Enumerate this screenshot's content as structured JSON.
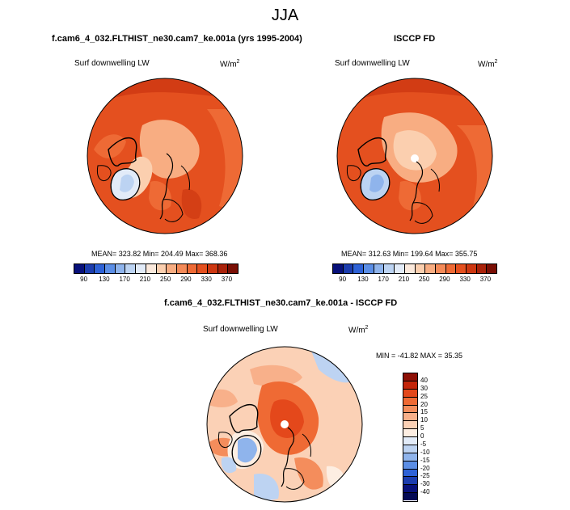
{
  "season": "JJA",
  "panel_model": {
    "title": "f.cam6_4_032.FLTHIST_ne30.cam7_ke.001a (yrs 1995-2004)",
    "variable": "Surf downwelling LW",
    "units_base": "W/m",
    "units_exp": "2",
    "stats": "MEAN= 323.82  Min= 204.49  Max= 368.36"
  },
  "panel_obs": {
    "title": "ISCCP FD",
    "variable": "Surf downwelling LW",
    "units_base": "W/m",
    "units_exp": "2",
    "stats": "MEAN= 312.63  Min= 199.64  Max= 355.75"
  },
  "panel_diff": {
    "title": "f.cam6_4_032.FLTHIST_ne30.cam7_ke.001a - ISCCP FD",
    "variable": "Surf downwelling LW",
    "units_base": "W/m",
    "units_exp": "2",
    "stats": "MIN = -41.82 MAX =  35.35"
  },
  "colorbar_abs": {
    "tick_labels": [
      "90",
      "130",
      "170",
      "210",
      "250",
      "290",
      "330",
      "370"
    ],
    "colors": [
      "#08117a",
      "#1c3dae",
      "#2e62d6",
      "#5b8ee6",
      "#8fb4ec",
      "#bcd3f2",
      "#e2ebf8",
      "#fbe9dc",
      "#fbcfaf",
      "#f8ad82",
      "#f48a58",
      "#ee6a35",
      "#e4501f",
      "#cd3711",
      "#a9220a",
      "#7a0f05"
    ]
  },
  "colorbar_diff": {
    "tick_labels": [
      "40",
      "30",
      "25",
      "20",
      "15",
      "10",
      "5",
      "0",
      "-5",
      "-10",
      "-15",
      "-20",
      "-25",
      "-30",
      "-40"
    ],
    "colors": [
      "#8e1006",
      "#c4250a",
      "#e4481b",
      "#ef6a34",
      "#f48d5c",
      "#f8b08a",
      "#fbd1b6",
      "#fdeee2",
      "#e2ebf8",
      "#bdd3f2",
      "#8fb4ec",
      "#5b8ee6",
      "#2e62d6",
      "#1c3dae",
      "#08117a",
      "#040a55"
    ]
  }
}
